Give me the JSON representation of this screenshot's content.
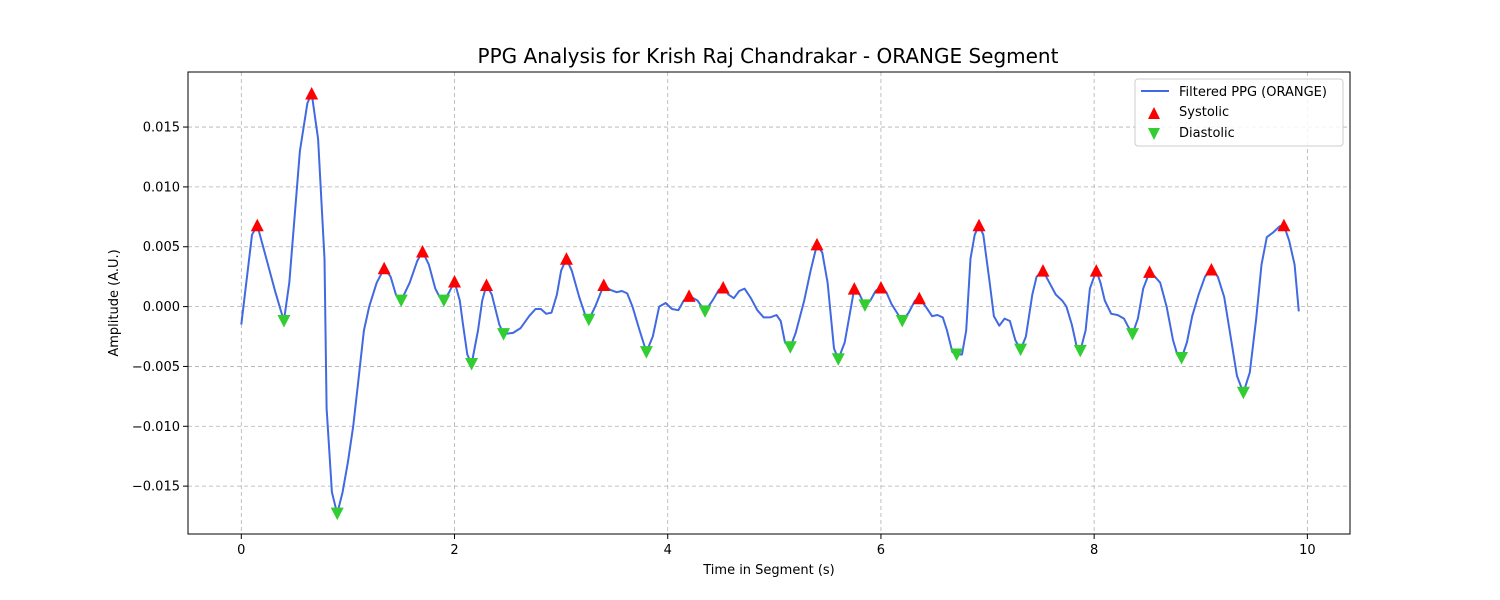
{
  "chart_data": {
    "type": "line",
    "title": "PPG Analysis for Krish Raj Chandrakar - ORANGE Segment",
    "xlabel": "Time in Segment (s)",
    "ylabel": "Amplitude (A.U.)",
    "xlim": [
      -0.5,
      10.4
    ],
    "ylim": [
      -0.019,
      0.0196
    ],
    "x_ticks": [
      0,
      2,
      4,
      6,
      8,
      10
    ],
    "x_tick_labels": [
      "0",
      "2",
      "4",
      "6",
      "8",
      "10"
    ],
    "y_ticks": [
      -0.015,
      -0.01,
      -0.005,
      0.0,
      0.005,
      0.01,
      0.015
    ],
    "y_tick_labels": [
      "−0.015",
      "−0.010",
      "−0.005",
      "0.000",
      "0.005",
      "0.010",
      "0.015"
    ],
    "grid": true,
    "legend_position": "top-right",
    "colors": {
      "line": "#4169e1",
      "systolic": "#ff0000",
      "diastolic": "#32cd32"
    },
    "series": [
      {
        "name": "Filtered PPG (ORANGE)",
        "kind": "line",
        "points": [
          [
            0.0,
            -0.0015
          ],
          [
            0.1,
            0.006
          ],
          [
            0.15,
            0.0068
          ],
          [
            0.25,
            0.0035
          ],
          [
            0.32,
            0.0012
          ],
          [
            0.4,
            -0.0012
          ],
          [
            0.45,
            0.002
          ],
          [
            0.55,
            0.013
          ],
          [
            0.62,
            0.017
          ],
          [
            0.66,
            0.0178
          ],
          [
            0.72,
            0.014
          ],
          [
            0.78,
            0.004
          ],
          [
            0.8,
            -0.0085
          ],
          [
            0.85,
            -0.0155
          ],
          [
            0.9,
            -0.0173
          ],
          [
            0.95,
            -0.0155
          ],
          [
            1.0,
            -0.013
          ],
          [
            1.05,
            -0.01
          ],
          [
            1.1,
            -0.006
          ],
          [
            1.15,
            -0.002
          ],
          [
            1.2,
            0.0
          ],
          [
            1.27,
            0.002
          ],
          [
            1.34,
            0.0032
          ],
          [
            1.4,
            0.0025
          ],
          [
            1.45,
            0.001
          ],
          [
            1.5,
            0.0005
          ],
          [
            1.58,
            0.002
          ],
          [
            1.65,
            0.0038
          ],
          [
            1.7,
            0.0046
          ],
          [
            1.76,
            0.0035
          ],
          [
            1.82,
            0.0015
          ],
          [
            1.86,
            0.0008
          ],
          [
            1.9,
            0.0005
          ],
          [
            1.95,
            0.0012
          ],
          [
            2.0,
            0.0021
          ],
          [
            2.05,
            0.0005
          ],
          [
            2.08,
            -0.0015
          ],
          [
            2.12,
            -0.004
          ],
          [
            2.16,
            -0.0048
          ],
          [
            2.22,
            -0.002
          ],
          [
            2.26,
            0.0005
          ],
          [
            2.3,
            0.0018
          ],
          [
            2.35,
            0.001
          ],
          [
            2.42,
            -0.0015
          ],
          [
            2.46,
            -0.0023
          ],
          [
            2.55,
            -0.0022
          ],
          [
            2.62,
            -0.0018
          ],
          [
            2.7,
            -0.0008
          ],
          [
            2.76,
            -0.0002
          ],
          [
            2.81,
            -0.0002
          ],
          [
            2.86,
            -0.0006
          ],
          [
            2.91,
            -0.0005
          ],
          [
            2.96,
            0.001
          ],
          [
            3.0,
            0.003
          ],
          [
            3.05,
            0.004
          ],
          [
            3.1,
            0.003
          ],
          [
            3.17,
            0.0008
          ],
          [
            3.23,
            -0.0008
          ],
          [
            3.26,
            -0.0011
          ],
          [
            3.32,
            0.0
          ],
          [
            3.4,
            0.0018
          ],
          [
            3.46,
            0.0014
          ],
          [
            3.52,
            0.0012
          ],
          [
            3.57,
            0.0013
          ],
          [
            3.62,
            0.0011
          ],
          [
            3.67,
            0.0
          ],
          [
            3.73,
            -0.0018
          ],
          [
            3.8,
            -0.0038
          ],
          [
            3.86,
            -0.0025
          ],
          [
            3.92,
            0.0
          ],
          [
            3.98,
            0.0003
          ],
          [
            4.04,
            -0.0002
          ],
          [
            4.1,
            -0.0003
          ],
          [
            4.15,
            0.0005
          ],
          [
            4.2,
            0.0009
          ],
          [
            4.28,
            0.0005
          ],
          [
            4.35,
            -0.0004
          ],
          [
            4.42,
            0.0005
          ],
          [
            4.48,
            0.0014
          ],
          [
            4.52,
            0.0016
          ],
          [
            4.57,
            0.001
          ],
          [
            4.62,
            0.0007
          ],
          [
            4.67,
            0.0013
          ],
          [
            4.72,
            0.0015
          ],
          [
            4.78,
            0.0007
          ],
          [
            4.84,
            -0.0003
          ],
          [
            4.9,
            -0.0009
          ],
          [
            4.96,
            -0.0009
          ],
          [
            5.02,
            -0.0007
          ],
          [
            5.06,
            -0.0012
          ],
          [
            5.1,
            -0.003
          ],
          [
            5.15,
            -0.0034
          ],
          [
            5.2,
            -0.0022
          ],
          [
            5.28,
            0.0005
          ],
          [
            5.34,
            0.003
          ],
          [
            5.4,
            0.0052
          ],
          [
            5.45,
            0.0045
          ],
          [
            5.5,
            0.002
          ],
          [
            5.56,
            -0.0035
          ],
          [
            5.6,
            -0.0044
          ],
          [
            5.66,
            -0.003
          ],
          [
            5.72,
            0.0
          ],
          [
            5.75,
            0.0015
          ],
          [
            5.8,
            0.001
          ],
          [
            5.85,
            0.0001
          ],
          [
            5.9,
            0.0005
          ],
          [
            5.95,
            0.0013
          ],
          [
            6.0,
            0.0016
          ],
          [
            6.05,
            0.0012
          ],
          [
            6.1,
            0.0002
          ],
          [
            6.15,
            -0.0005
          ],
          [
            6.2,
            -0.0012
          ],
          [
            6.26,
            -0.0005
          ],
          [
            6.32,
            0.0005
          ],
          [
            6.36,
            0.0007
          ],
          [
            6.42,
            0.0
          ],
          [
            6.48,
            -0.0008
          ],
          [
            6.53,
            -0.0007
          ],
          [
            6.58,
            -0.0009
          ],
          [
            6.62,
            -0.002
          ],
          [
            6.67,
            -0.0038
          ],
          [
            6.71,
            -0.004
          ],
          [
            6.76,
            -0.004
          ],
          [
            6.8,
            -0.002
          ],
          [
            6.84,
            0.004
          ],
          [
            6.88,
            0.006
          ],
          [
            6.92,
            0.0068
          ],
          [
            6.96,
            0.006
          ],
          [
            7.02,
            0.002
          ],
          [
            7.06,
            -0.0008
          ],
          [
            7.11,
            -0.0016
          ],
          [
            7.16,
            -0.001
          ],
          [
            7.21,
            -0.0012
          ],
          [
            7.26,
            -0.0028
          ],
          [
            7.31,
            -0.0036
          ],
          [
            7.36,
            -0.0025
          ],
          [
            7.42,
            0.001
          ],
          [
            7.46,
            0.0025
          ],
          [
            7.52,
            0.003
          ],
          [
            7.58,
            0.002
          ],
          [
            7.64,
            0.001
          ],
          [
            7.7,
            0.0005
          ],
          [
            7.74,
            0.0
          ],
          [
            7.79,
            -0.0015
          ],
          [
            7.84,
            -0.0035
          ],
          [
            7.87,
            -0.0037
          ],
          [
            7.92,
            -0.002
          ],
          [
            7.96,
            0.0015
          ],
          [
            8.02,
            0.003
          ],
          [
            8.06,
            0.002
          ],
          [
            8.1,
            0.0005
          ],
          [
            8.16,
            -0.0006
          ],
          [
            8.22,
            -0.0007
          ],
          [
            8.28,
            -0.001
          ],
          [
            8.32,
            -0.0017
          ],
          [
            8.36,
            -0.0023
          ],
          [
            8.41,
            -0.001
          ],
          [
            8.46,
            0.0015
          ],
          [
            8.52,
            0.0029
          ],
          [
            8.57,
            0.0025
          ],
          [
            8.62,
            0.002
          ],
          [
            8.68,
            0.0
          ],
          [
            8.74,
            -0.0028
          ],
          [
            8.78,
            -0.004
          ],
          [
            8.82,
            -0.0043
          ],
          [
            8.87,
            -0.003
          ],
          [
            8.92,
            -0.0008
          ],
          [
            8.98,
            0.001
          ],
          [
            9.04,
            0.0025
          ],
          [
            9.1,
            0.0031
          ],
          [
            9.16,
            0.0025
          ],
          [
            9.22,
            0.0008
          ],
          [
            9.28,
            -0.0025
          ],
          [
            9.34,
            -0.0058
          ],
          [
            9.4,
            -0.0072
          ],
          [
            9.46,
            -0.0055
          ],
          [
            9.52,
            -0.001
          ],
          [
            9.57,
            0.0035
          ],
          [
            9.62,
            0.0058
          ],
          [
            9.68,
            0.0062
          ],
          [
            9.74,
            0.0067
          ],
          [
            9.78,
            0.0068
          ],
          [
            9.83,
            0.0055
          ],
          [
            9.88,
            0.0035
          ],
          [
            9.92,
            -0.0004
          ]
        ]
      },
      {
        "name": "Systolic",
        "kind": "marker",
        "marker": "triangle-up",
        "points": [
          [
            0.15,
            0.0068
          ],
          [
            0.66,
            0.0178
          ],
          [
            1.34,
            0.0032
          ],
          [
            1.7,
            0.0046
          ],
          [
            2.0,
            0.0021
          ],
          [
            2.3,
            0.0018
          ],
          [
            3.05,
            0.004
          ],
          [
            3.4,
            0.0018
          ],
          [
            4.2,
            0.0009
          ],
          [
            4.52,
            0.0016
          ],
          [
            5.4,
            0.0052
          ],
          [
            5.75,
            0.0015
          ],
          [
            6.0,
            0.0016
          ],
          [
            6.36,
            0.0007
          ],
          [
            6.92,
            0.0068
          ],
          [
            7.52,
            0.003
          ],
          [
            8.02,
            0.003
          ],
          [
            8.52,
            0.0029
          ],
          [
            9.1,
            0.0031
          ],
          [
            9.78,
            0.0068
          ]
        ]
      },
      {
        "name": "Diastolic",
        "kind": "marker",
        "marker": "triangle-down",
        "points": [
          [
            0.4,
            -0.0012
          ],
          [
            0.9,
            -0.0173
          ],
          [
            1.5,
            0.0005
          ],
          [
            1.9,
            0.0005
          ],
          [
            2.16,
            -0.0048
          ],
          [
            2.46,
            -0.0023
          ],
          [
            3.26,
            -0.0011
          ],
          [
            3.8,
            -0.0038
          ],
          [
            4.35,
            -0.0004
          ],
          [
            5.15,
            -0.0034
          ],
          [
            5.6,
            -0.0044
          ],
          [
            5.85,
            0.0001
          ],
          [
            6.2,
            -0.0012
          ],
          [
            6.71,
            -0.004
          ],
          [
            7.31,
            -0.0036
          ],
          [
            7.87,
            -0.0037
          ],
          [
            8.36,
            -0.0023
          ],
          [
            8.82,
            -0.0043
          ],
          [
            9.4,
            -0.0072
          ]
        ]
      }
    ]
  }
}
